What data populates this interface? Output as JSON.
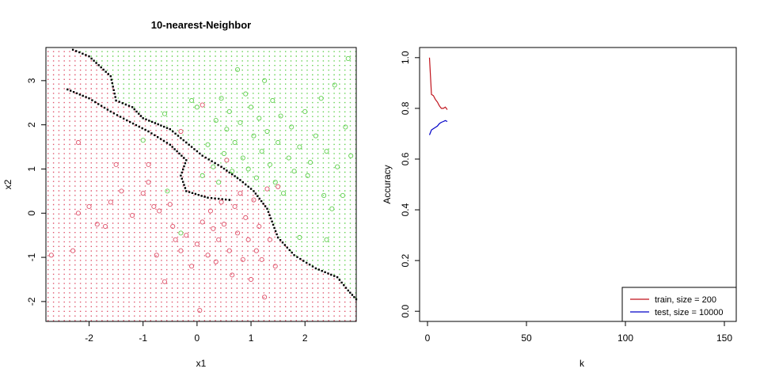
{
  "chart_data": [
    {
      "type": "scatter",
      "title": "10-nearest-Neighbor",
      "xlabel": "x1",
      "ylabel": "x2",
      "xlim": [
        -2.8,
        2.95
      ],
      "ylim": [
        -2.45,
        3.75
      ],
      "xticks": [
        -2,
        -1,
        0,
        1,
        2
      ],
      "yticks": [
        -2,
        -1,
        0,
        1,
        2,
        3
      ],
      "grid": false,
      "classes": [
        {
          "name": "",
          "color": "#DF536B",
          "marker": "circle"
        },
        {
          "name": "",
          "color": "#61D04F",
          "marker": "circle"
        }
      ],
      "boundary_color": "#000000",
      "boundary": [
        [
          -2.3,
          3.7
        ],
        [
          -2.0,
          3.55
        ],
        [
          -1.6,
          3.1
        ],
        [
          -1.5,
          2.55
        ],
        [
          -1.2,
          2.4
        ],
        [
          -1.0,
          2.15
        ],
        [
          -0.5,
          1.9
        ],
        [
          -0.2,
          1.6
        ],
        [
          0.1,
          1.3
        ],
        [
          0.45,
          1.05
        ],
        [
          0.8,
          0.75
        ],
        [
          1.05,
          0.5
        ],
        [
          1.3,
          0.1
        ],
        [
          1.5,
          -0.55
        ],
        [
          1.8,
          -0.95
        ],
        [
          2.2,
          -1.25
        ],
        [
          2.6,
          -1.45
        ],
        [
          2.8,
          -1.75
        ],
        [
          2.95,
          -1.95
        ]
      ],
      "boundary_branch": [
        [
          -2.4,
          2.8
        ],
        [
          -2.0,
          2.6
        ],
        [
          -1.6,
          2.3
        ],
        [
          -1.3,
          2.1
        ],
        [
          -0.9,
          1.85
        ],
        [
          -0.5,
          1.55
        ],
        [
          -0.2,
          1.2
        ],
        [
          -0.3,
          0.85
        ],
        [
          -0.2,
          0.5
        ],
        [
          0.2,
          0.35
        ],
        [
          0.6,
          0.3
        ]
      ],
      "points_red": [
        [
          -2.7,
          -0.95
        ],
        [
          -2.3,
          -0.85
        ],
        [
          -2.2,
          0.0
        ],
        [
          -2.0,
          0.15
        ],
        [
          -1.85,
          -0.25
        ],
        [
          -1.7,
          -0.3
        ],
        [
          -1.6,
          0.25
        ],
        [
          -1.5,
          1.1
        ],
        [
          -1.4,
          0.5
        ],
        [
          -1.2,
          -0.05
        ],
        [
          -1.0,
          0.45
        ],
        [
          -0.9,
          0.7
        ],
        [
          -0.8,
          0.15
        ],
        [
          -0.75,
          -0.95
        ],
        [
          -0.7,
          0.05
        ],
        [
          -0.6,
          -1.55
        ],
        [
          -0.5,
          0.2
        ],
        [
          -0.45,
          -0.3
        ],
        [
          -0.4,
          -0.6
        ],
        [
          -0.3,
          -0.85
        ],
        [
          -0.2,
          -0.5
        ],
        [
          -0.1,
          -1.2
        ],
        [
          0.0,
          -0.7
        ],
        [
          0.05,
          -2.2
        ],
        [
          0.1,
          -0.2
        ],
        [
          0.2,
          -0.95
        ],
        [
          0.25,
          0.05
        ],
        [
          0.3,
          -0.35
        ],
        [
          0.35,
          -1.1
        ],
        [
          0.4,
          -0.6
        ],
        [
          0.45,
          0.25
        ],
        [
          0.5,
          -0.25
        ],
        [
          0.55,
          1.2
        ],
        [
          0.6,
          -0.85
        ],
        [
          0.65,
          -1.4
        ],
        [
          0.7,
          0.15
        ],
        [
          0.75,
          -0.45
        ],
        [
          0.8,
          0.45
        ],
        [
          0.85,
          -1.05
        ],
        [
          0.9,
          -0.1
        ],
        [
          0.95,
          -0.6
        ],
        [
          1.0,
          -1.5
        ],
        [
          1.05,
          0.3
        ],
        [
          1.1,
          -0.85
        ],
        [
          1.15,
          -0.3
        ],
        [
          1.2,
          -1.05
        ],
        [
          1.25,
          -1.9
        ],
        [
          1.3,
          0.55
        ],
        [
          1.35,
          -0.6
        ],
        [
          1.45,
          -1.2
        ],
        [
          -0.3,
          1.85
        ],
        [
          0.1,
          2.45
        ],
        [
          -2.2,
          1.6
        ],
        [
          -0.9,
          1.1
        ],
        [
          1.5,
          0.6
        ]
      ],
      "points_green": [
        [
          -1.0,
          1.65
        ],
        [
          -0.6,
          2.25
        ],
        [
          -0.55,
          0.5
        ],
        [
          -0.3,
          -0.45
        ],
        [
          -0.1,
          2.55
        ],
        [
          0.0,
          2.4
        ],
        [
          0.1,
          0.85
        ],
        [
          0.2,
          1.55
        ],
        [
          0.3,
          1.05
        ],
        [
          0.35,
          2.1
        ],
        [
          0.4,
          0.7
        ],
        [
          0.45,
          2.6
        ],
        [
          0.5,
          1.35
        ],
        [
          0.55,
          1.9
        ],
        [
          0.6,
          2.3
        ],
        [
          0.65,
          0.95
        ],
        [
          0.7,
          1.6
        ],
        [
          0.75,
          3.25
        ],
        [
          0.8,
          2.05
        ],
        [
          0.85,
          1.25
        ],
        [
          0.9,
          2.7
        ],
        [
          0.95,
          1.0
        ],
        [
          1.0,
          2.4
        ],
        [
          1.05,
          1.75
        ],
        [
          1.1,
          0.8
        ],
        [
          1.15,
          2.15
        ],
        [
          1.2,
          1.4
        ],
        [
          1.25,
          3.0
        ],
        [
          1.3,
          1.85
        ],
        [
          1.35,
          1.1
        ],
        [
          1.4,
          2.55
        ],
        [
          1.45,
          0.7
        ],
        [
          1.5,
          1.6
        ],
        [
          1.55,
          2.2
        ],
        [
          1.6,
          0.45
        ],
        [
          1.7,
          1.25
        ],
        [
          1.75,
          1.95
        ],
        [
          1.8,
          0.95
        ],
        [
          1.9,
          1.5
        ],
        [
          2.0,
          2.3
        ],
        [
          2.05,
          0.85
        ],
        [
          2.1,
          1.15
        ],
        [
          2.2,
          1.75
        ],
        [
          2.3,
          2.6
        ],
        [
          2.35,
          0.4
        ],
        [
          2.4,
          1.4
        ],
        [
          2.5,
          0.1
        ],
        [
          2.55,
          2.9
        ],
        [
          2.6,
          1.05
        ],
        [
          2.7,
          0.4
        ],
        [
          2.75,
          1.95
        ],
        [
          2.8,
          3.5
        ],
        [
          2.85,
          1.3
        ],
        [
          1.9,
          -0.55
        ],
        [
          2.4,
          -0.6
        ]
      ]
    },
    {
      "type": "line",
      "title": "",
      "xlabel": "k",
      "ylabel": "Accuracy",
      "xlim": [
        -4,
        156
      ],
      "ylim": [
        -0.04,
        1.04
      ],
      "xticks": [
        0,
        50,
        100,
        150
      ],
      "yticks": [
        0.0,
        0.2,
        0.4,
        0.6,
        0.8,
        1.0
      ],
      "grid": false,
      "legend_position": "bottom-right",
      "series": [
        {
          "name": "train, size = 200",
          "color": "#C0121B",
          "x": [
            1,
            2,
            3,
            4,
            5,
            6,
            7,
            8,
            9,
            10
          ],
          "y": [
            1.0,
            0.855,
            0.85,
            0.835,
            0.825,
            0.81,
            0.8,
            0.8,
            0.805,
            0.795
          ]
        },
        {
          "name": "test, size = 10000",
          "color": "#0000C8",
          "x": [
            1,
            2,
            3,
            4,
            5,
            6,
            7,
            8,
            9,
            10
          ],
          "y": [
            0.695,
            0.715,
            0.72,
            0.725,
            0.73,
            0.74,
            0.745,
            0.748,
            0.752,
            0.748
          ]
        }
      ]
    }
  ]
}
